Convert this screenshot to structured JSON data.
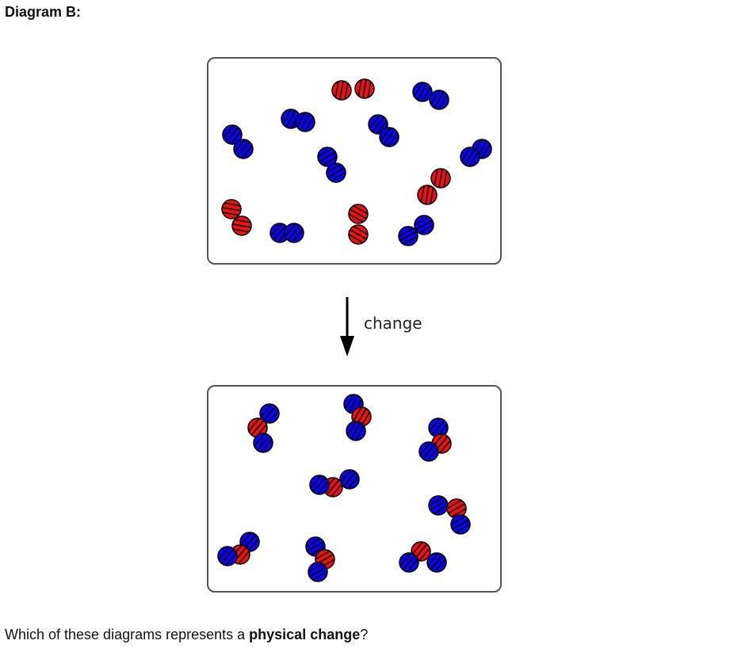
{
  "heading": "Diagram B:",
  "arrow_label": "change",
  "question": {
    "before": "Which of these diagrams represents a ",
    "emphasis": "physical change",
    "after": "?"
  },
  "colors": {
    "blue_atom": "#0d00f0",
    "red_atom": "#f01010",
    "stripe": "#000000"
  },
  "diagrams": {
    "before": {
      "molecules": [
        {
          "kind": "blue-diatomic",
          "atoms": 2
        },
        {
          "kind": "blue-diatomic",
          "atoms": 2
        },
        {
          "kind": "red-diatomic",
          "atoms": 2
        },
        {
          "kind": "blue-diatomic",
          "atoms": 2
        },
        {
          "kind": "blue-diatomic",
          "atoms": 2
        },
        {
          "kind": "blue-diatomic",
          "atoms": 2
        },
        {
          "kind": "blue-diatomic",
          "atoms": 2
        },
        {
          "kind": "red-diatomic",
          "atoms": 2
        },
        {
          "kind": "red-diatomic",
          "atoms": 2
        },
        {
          "kind": "blue-diatomic",
          "atoms": 2
        },
        {
          "kind": "red-diatomic",
          "atoms": 2
        },
        {
          "kind": "blue-diatomic",
          "atoms": 2
        }
      ]
    },
    "after": {
      "molecules": [
        {
          "kind": "blue-red-blue triatomic",
          "atoms": 3
        },
        {
          "kind": "blue-red-blue triatomic",
          "atoms": 3
        },
        {
          "kind": "blue-red-blue triatomic",
          "atoms": 3
        },
        {
          "kind": "blue-red-blue triatomic",
          "atoms": 3
        },
        {
          "kind": "blue-red-blue triatomic",
          "atoms": 3
        },
        {
          "kind": "blue-red-blue triatomic",
          "atoms": 3
        },
        {
          "kind": "blue-red-blue triatomic",
          "atoms": 3
        },
        {
          "kind": "blue-red-blue triatomic",
          "atoms": 3
        }
      ]
    }
  }
}
